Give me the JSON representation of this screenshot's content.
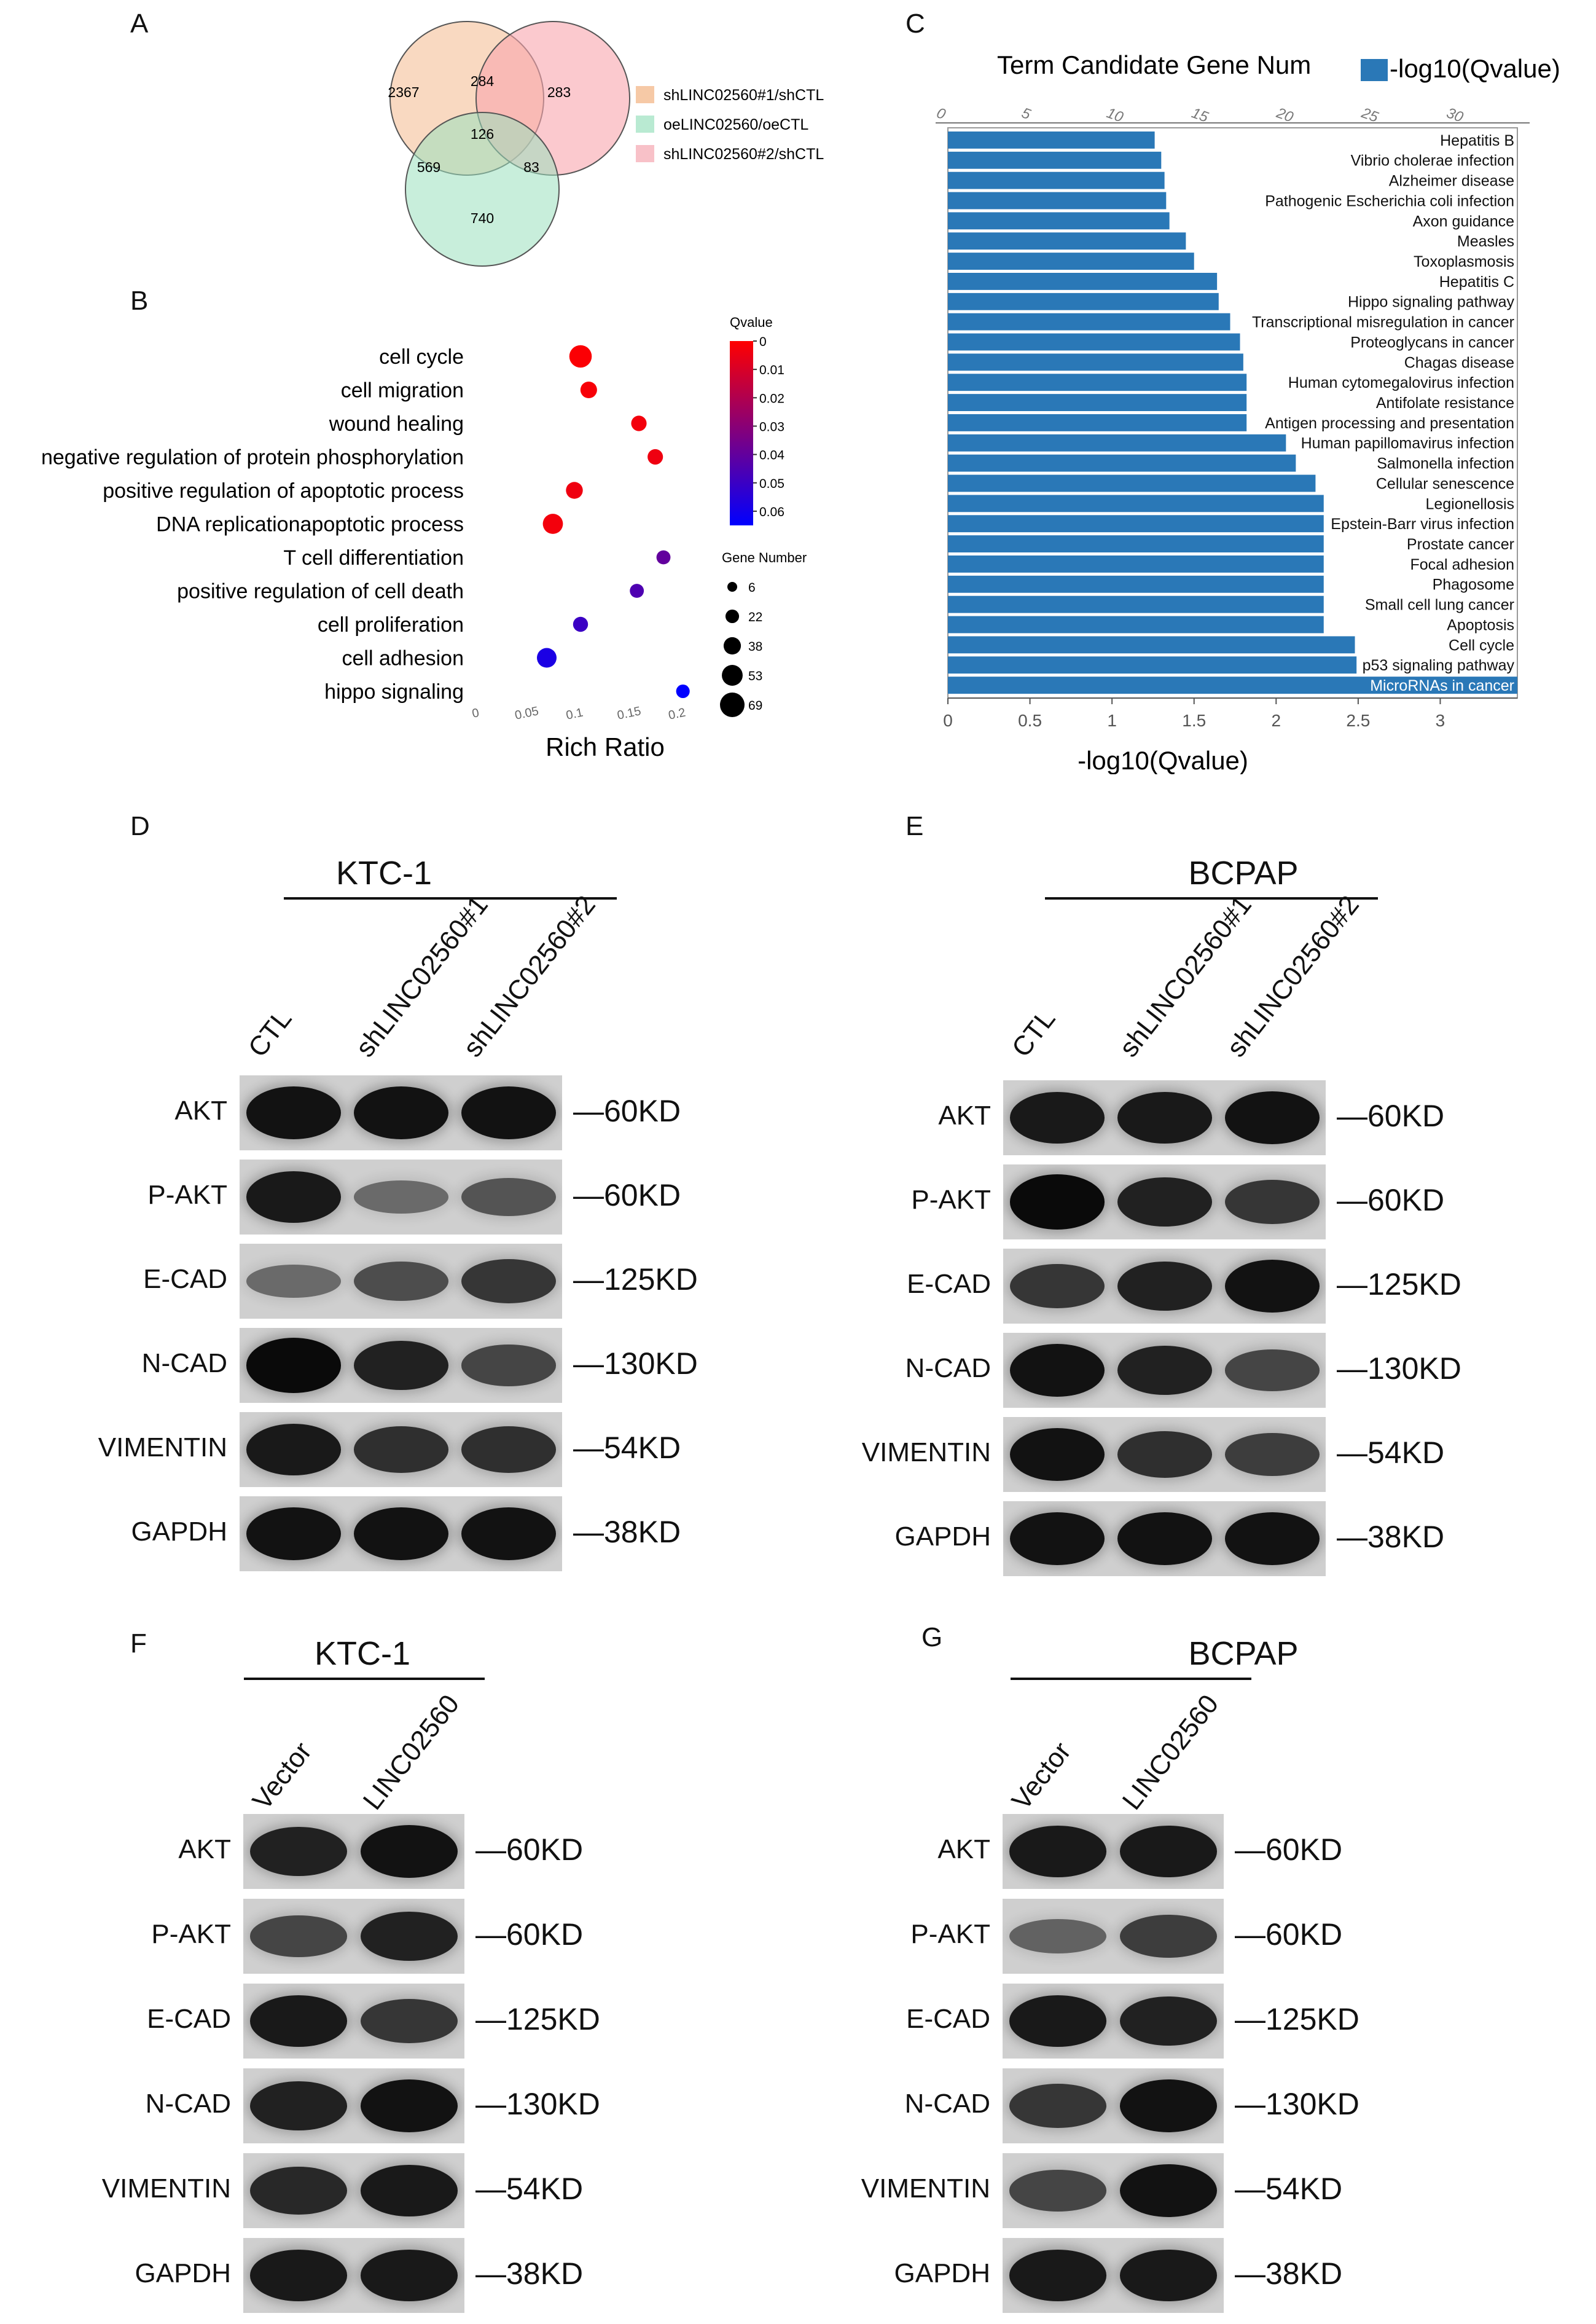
{
  "panels": {
    "A": "A",
    "B": "B",
    "C": "C",
    "D": "D",
    "E": "E",
    "F": "F",
    "G": "G"
  },
  "venn": {
    "legend": [
      {
        "label": "shLINC02560#1/shCTL",
        "color": "#f6c9a6"
      },
      {
        "label": "oeLINC02560/oeCTL",
        "color": "#b9ead2"
      },
      {
        "label": "shLINC02560#2/shCTL",
        "color": "#f8c1c8"
      }
    ],
    "regions": {
      "only1": "2367",
      "one_two": "284",
      "only2": "283",
      "all": "126",
      "one_three": "569",
      "two_three": "83",
      "only3": "740"
    }
  },
  "chart_data": [
    {
      "type": "scatter",
      "panel": "B",
      "xlabel": "Rich Ratio",
      "x_ticks": [
        "0",
        "0.05",
        "0.1",
        "0.15",
        "0.2"
      ],
      "xlim": [
        0,
        0.21
      ],
      "categories": [
        "cell cycle",
        "cell migration",
        "wound healing",
        "negative regulation of protein phosphorylation",
        "positive regulation of apoptotic process",
        "DNA replicationapoptotic process",
        "T cell differentiation",
        "positive regulation of cell death",
        "cell proliferation",
        "cell adhesion",
        "hippo signaling"
      ],
      "points": [
        {
          "term": "cell cycle",
          "rich_ratio": 0.105,
          "qvalue": 0.001,
          "gene_number": 60
        },
        {
          "term": "cell migration",
          "rich_ratio": 0.113,
          "qvalue": 0.002,
          "gene_number": 35
        },
        {
          "term": "wound healing",
          "rich_ratio": 0.162,
          "qvalue": 0.003,
          "gene_number": 30
        },
        {
          "term": "negative regulation of protein phosphorylation",
          "rich_ratio": 0.178,
          "qvalue": 0.004,
          "gene_number": 30
        },
        {
          "term": "positive regulation of apoptotic process",
          "rich_ratio": 0.099,
          "qvalue": 0.004,
          "gene_number": 36
        },
        {
          "term": "DNA replicationapoptotic process",
          "rich_ratio": 0.078,
          "qvalue": 0.003,
          "gene_number": 50
        },
        {
          "term": "T cell differentiation",
          "rich_ratio": 0.186,
          "qvalue": 0.04,
          "gene_number": 24
        },
        {
          "term": "positive regulation of cell death",
          "rich_ratio": 0.16,
          "qvalue": 0.045,
          "gene_number": 24
        },
        {
          "term": "cell proliferation",
          "rich_ratio": 0.105,
          "qvalue": 0.05,
          "gene_number": 28
        },
        {
          "term": "cell adhesion",
          "rich_ratio": 0.072,
          "qvalue": 0.058,
          "gene_number": 48
        },
        {
          "term": "hippo signaling",
          "rich_ratio": 0.205,
          "qvalue": 0.065,
          "gene_number": 22
        }
      ],
      "color_legend": {
        "title": "Qvalue",
        "ticks": [
          "0",
          "0.01",
          "0.02",
          "0.03",
          "0.04",
          "0.05",
          "0.06"
        ],
        "high_color": "#ff0000",
        "low_color": "#0000ff"
      },
      "size_legend": {
        "title": "Gene Number",
        "values": [
          "6",
          "22",
          "38",
          "53",
          "69"
        ]
      }
    },
    {
      "type": "bar",
      "panel": "C",
      "orientation": "horizontal",
      "title": "Term Candidate Gene Num",
      "legend": "-log10(Qvalue)",
      "xlabel": "-log10(Qvalue)",
      "bottom_ticks": [
        "0",
        "0.5",
        "1",
        "1.5",
        "2",
        "2.5",
        "3"
      ],
      "top_ticks": [
        "0",
        "5",
        "10",
        "15",
        "20",
        "25",
        "30"
      ],
      "xlim": [
        0,
        3.47
      ],
      "bar_color": "#2a78b7",
      "categories": [
        "Hepatitis B",
        "Vibrio cholerae infection",
        "Alzheimer disease",
        "Pathogenic Escherichia coli infection",
        "Axon guidance",
        "Measles",
        "Toxoplasmosis",
        "Hepatitis C",
        "Hippo signaling pathway",
        "Transcriptional misregulation in cancer",
        "Proteoglycans in cancer",
        "Chagas disease",
        "Human cytomegalovirus infection",
        "Antifolate resistance",
        "Antigen processing and presentation",
        "Human papillomavirus infection",
        "Salmonella infection",
        "Cellular senescence",
        "Legionellosis",
        "Epstein-Barr virus infection",
        "Prostate cancer",
        "Focal adhesion",
        "Phagosome",
        "Small cell lung cancer",
        "Apoptosis",
        "Cell cycle",
        "p53 signaling pathway",
        "MicroRNAs in cancer"
      ],
      "values": [
        1.26,
        1.3,
        1.32,
        1.33,
        1.35,
        1.45,
        1.5,
        1.64,
        1.65,
        1.72,
        1.78,
        1.8,
        1.82,
        1.82,
        1.82,
        2.06,
        2.12,
        2.24,
        2.29,
        2.29,
        2.29,
        2.29,
        2.29,
        2.29,
        2.29,
        2.48,
        2.49,
        3.47
      ]
    }
  ],
  "blots": {
    "D": {
      "cell": "KTC-1",
      "lanes": [
        "CTL",
        "shLINC02560#1",
        "shLINC02560#2"
      ],
      "rows": [
        {
          "label": "AKT",
          "kd": "—60KD",
          "intensity": [
            0.95,
            0.95,
            0.95
          ]
        },
        {
          "label": "P-AKT",
          "kd": "—60KD",
          "intensity": [
            0.9,
            0.35,
            0.5
          ]
        },
        {
          "label": "E-CAD",
          "kd": "—125KD",
          "intensity": [
            0.35,
            0.55,
            0.7
          ]
        },
        {
          "label": "N-CAD",
          "kd": "—130KD",
          "intensity": [
            1.0,
            0.85,
            0.6
          ]
        },
        {
          "label": "VIMENTIN",
          "kd": "—54KD",
          "intensity": [
            0.9,
            0.75,
            0.75
          ]
        },
        {
          "label": "GAPDH",
          "kd": "—38KD",
          "intensity": [
            0.95,
            0.95,
            0.95
          ]
        }
      ]
    },
    "E": {
      "cell": "BCPAP",
      "lanes": [
        "CTL",
        "shLINC02560#1",
        "shLINC02560#2"
      ],
      "rows": [
        {
          "label": "AKT",
          "kd": "—60KD",
          "intensity": [
            0.9,
            0.9,
            0.95
          ]
        },
        {
          "label": "P-AKT",
          "kd": "—60KD",
          "intensity": [
            1.0,
            0.85,
            0.7
          ]
        },
        {
          "label": "E-CAD",
          "kd": "—125KD",
          "intensity": [
            0.7,
            0.85,
            0.95
          ]
        },
        {
          "label": "N-CAD",
          "kd": "—130KD",
          "intensity": [
            0.95,
            0.85,
            0.6
          ]
        },
        {
          "label": "VIMENTIN",
          "kd": "—54KD",
          "intensity": [
            0.95,
            0.75,
            0.65
          ]
        },
        {
          "label": "GAPDH",
          "kd": "—38KD",
          "intensity": [
            0.95,
            0.95,
            0.95
          ]
        }
      ]
    },
    "F": {
      "cell": "KTC-1",
      "lanes": [
        "Vector",
        "LINC02560"
      ],
      "rows": [
        {
          "label": "AKT",
          "kd": "—60KD",
          "intensity": [
            0.85,
            0.95
          ]
        },
        {
          "label": "P-AKT",
          "kd": "—60KD",
          "intensity": [
            0.6,
            0.85
          ]
        },
        {
          "label": "E-CAD",
          "kd": "—125KD",
          "intensity": [
            0.9,
            0.7
          ]
        },
        {
          "label": "N-CAD",
          "kd": "—130KD",
          "intensity": [
            0.85,
            0.95
          ]
        },
        {
          "label": "VIMENTIN",
          "kd": "—54KD",
          "intensity": [
            0.8,
            0.9
          ]
        },
        {
          "label": "GAPDH",
          "kd": "—38KD",
          "intensity": [
            0.9,
            0.9
          ]
        }
      ]
    },
    "G": {
      "cell": "BCPAP",
      "lanes": [
        "Vector",
        "LINC02560"
      ],
      "rows": [
        {
          "label": "AKT",
          "kd": "—60KD",
          "intensity": [
            0.9,
            0.9
          ]
        },
        {
          "label": "P-AKT",
          "kd": "—60KD",
          "intensity": [
            0.4,
            0.65
          ]
        },
        {
          "label": "E-CAD",
          "kd": "—125KD",
          "intensity": [
            0.9,
            0.85
          ]
        },
        {
          "label": "N-CAD",
          "kd": "—130KD",
          "intensity": [
            0.7,
            0.95
          ]
        },
        {
          "label": "VIMENTIN",
          "kd": "—54KD",
          "intensity": [
            0.6,
            0.95
          ]
        },
        {
          "label": "GAPDH",
          "kd": "—38KD",
          "intensity": [
            0.9,
            0.9
          ]
        }
      ]
    }
  }
}
